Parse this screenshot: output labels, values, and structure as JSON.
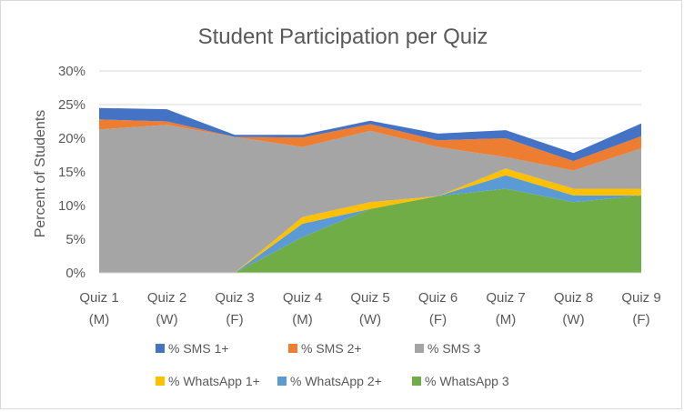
{
  "chart_data": {
    "type": "area",
    "stacked": true,
    "title": "Student Participation per Quiz",
    "ylabel": "Percent of Students",
    "xlabel": "",
    "ylim": [
      0,
      30
    ],
    "y_ticks": [
      "0%",
      "5%",
      "10%",
      "15%",
      "20%",
      "25%",
      "30%"
    ],
    "y_tick_values": [
      0,
      5,
      10,
      15,
      20,
      25,
      30
    ],
    "grid": "horizontal",
    "legend_position": "bottom",
    "categories": [
      {
        "line1": "Quiz 1",
        "line2": "(M)"
      },
      {
        "line1": "Quiz 2",
        "line2": "(W)"
      },
      {
        "line1": "Quiz 3",
        "line2": "(F)"
      },
      {
        "line1": "Quiz 4",
        "line2": "(M)"
      },
      {
        "line1": "Quiz 5",
        "line2": "(W)"
      },
      {
        "line1": "Quiz 6",
        "line2": "(F)"
      },
      {
        "line1": "Quiz 7",
        "line2": "(M)"
      },
      {
        "line1": "Quiz 8",
        "line2": "(W)"
      },
      {
        "line1": "Quiz 9",
        "line2": "(F)"
      }
    ],
    "series": [
      {
        "name": "% WhatsApp 3",
        "color": "#70ad47",
        "values": [
          0,
          0,
          0,
          5.3,
          9.5,
          11.4,
          12.5,
          10.5,
          11.5
        ]
      },
      {
        "name": "% WhatsApp 2+",
        "color": "#5b9bd5",
        "values": [
          0,
          0,
          0,
          2.0,
          0,
          0,
          2.0,
          1.0,
          0
        ]
      },
      {
        "name": "% WhatsApp 1+",
        "color": "#ffc000",
        "values": [
          0,
          0,
          0,
          1.0,
          1.0,
          0,
          1.0,
          1.0,
          1.0
        ]
      },
      {
        "name": "% SMS 3",
        "color": "#a5a5a5",
        "values": [
          21.3,
          22.0,
          20.2,
          10.4,
          10.6,
          7.3,
          1.7,
          2.7,
          6.0
        ]
      },
      {
        "name": "% SMS 2+",
        "color": "#ed7d31",
        "values": [
          1.5,
          0.5,
          0,
          1.4,
          1.0,
          1.0,
          2.8,
          1.4,
          1.8
        ]
      },
      {
        "name": "% SMS 1+",
        "color": "#4472c4",
        "values": [
          1.7,
          1.8,
          0.3,
          0.4,
          0.5,
          1.0,
          1.2,
          1.2,
          1.9
        ]
      }
    ],
    "legend_order": [
      [
        "% SMS 1+",
        "% SMS 2+",
        "% SMS 3"
      ],
      [
        "% WhatsApp 1+",
        "% WhatsApp 2+",
        "% WhatsApp 3"
      ]
    ]
  }
}
